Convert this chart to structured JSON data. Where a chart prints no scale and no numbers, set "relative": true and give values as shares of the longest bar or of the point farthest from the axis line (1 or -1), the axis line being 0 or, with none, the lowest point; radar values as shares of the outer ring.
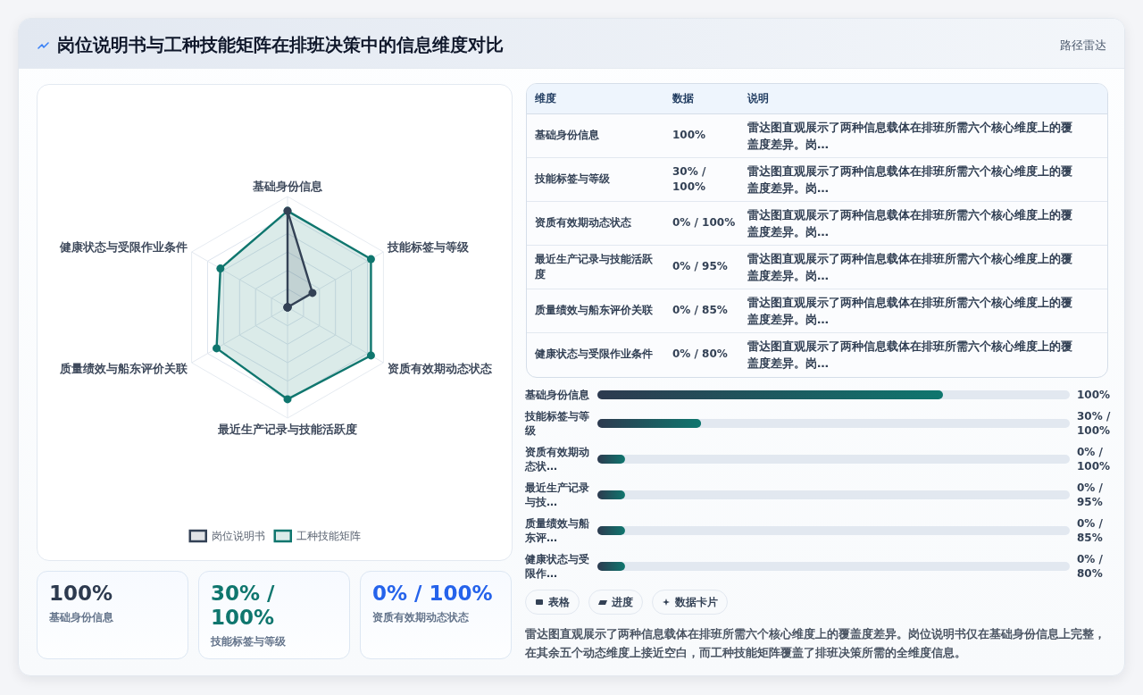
{
  "chart_data": [
    {
      "type": "other",
      "title": "岗位说明书与工种技能矩阵在排班决策中的信息维度对比",
      "subtitle": "路径雷达"
    },
    {
      "type": "radar",
      "relative": true,
      "categories": [
        "基础身份信息",
        "技能标签与等级",
        "资质有效期动态状态",
        "最近生产记录与技能活跃度",
        "质量绩效与船东评价关联",
        "健康状态与受限作业条件"
      ],
      "series": [
        {
          "name": "岗位说明书",
          "color": "#334155",
          "values": [
            0.87,
            0.26,
            0,
            0,
            0,
            0
          ]
        },
        {
          "name": "工种技能矩阵",
          "color": "#0f766e",
          "values": [
            0.87,
            0.87,
            0.87,
            0.83,
            0.74,
            0.7
          ]
        }
      ],
      "grid": true,
      "legend": "bottom",
      "marker": "circle",
      "tick_labels": "x"
    },
    {
      "type": "other",
      "categories": [
        "维度",
        "数据",
        "说明"
      ],
      "cell_labels": [
        [
          "基础身份信息",
          "100%",
          "雷达图直观展示了两种信息载体在排班所需六个核心维度上的覆盖度差异。岗…"
        ],
        [
          "技能标签与等级",
          "30% / 100%",
          "雷达图直观展示了两种信息载体在排班所需六个核心维度上的覆盖度差异。岗…"
        ],
        [
          "资质有效期动态状态",
          "0% / 100%",
          "雷达图直观展示了两种信息载体在排班所需六个核心维度上的覆盖度差异。岗…"
        ],
        [
          "最近生产记录与技能活跃度",
          "0% / 95%",
          "雷达图直观展示了两种信息载体在排班所需六个核心维度上的覆盖度差异。岗…"
        ],
        [
          "质量绩效与船东评价关联",
          "0% / 85%",
          "雷达图直观展示了两种信息载体在排班所需六个核心维度上的覆盖度差异。岗…"
        ],
        [
          "健康状态与受限作业条件",
          "0% / 80%",
          "雷达图直观展示了两种信息载体在排班所需六个核心维度上的覆盖度差异。岗…"
        ]
      ]
    },
    {
      "type": "bar",
      "orientation": "horizontal",
      "relative": true,
      "categories": [
        "基础身份信息",
        "技能标签与等级",
        "资质有效期动态状…",
        "最近生产记录与技…",
        "质量绩效与船东评…",
        "健康状态与受限作…"
      ],
      "values": [
        1,
        0.3,
        0.08,
        0.08,
        0.08,
        0.08
      ],
      "color": "#0f766e",
      "annotations": [
        "100%",
        "30% / 100%",
        "0% / 100%",
        "0% / 95%",
        "0% / 85%",
        "0% / 80%"
      ]
    },
    {
      "type": "other",
      "categories": [
        "基础身份信息",
        "技能标签与等级",
        "资质有效期动态状态"
      ],
      "value_labels": [
        "100%",
        "30% / 100%",
        "0% / 100%"
      ]
    },
    {
      "type": "other",
      "categories": [
        "表格",
        "进度",
        "数据卡片"
      ],
      "annotations": [
        "雷达图直观展示了两种信息载体在排班所需六个核心维度上的覆盖度差异。岗位说明书仅在基础身份信息上完整，在其余五个动态维度上接近空白，而工种技能矩阵覆盖了排班决策所需的全维度信息。"
      ]
    }
  ]
}
